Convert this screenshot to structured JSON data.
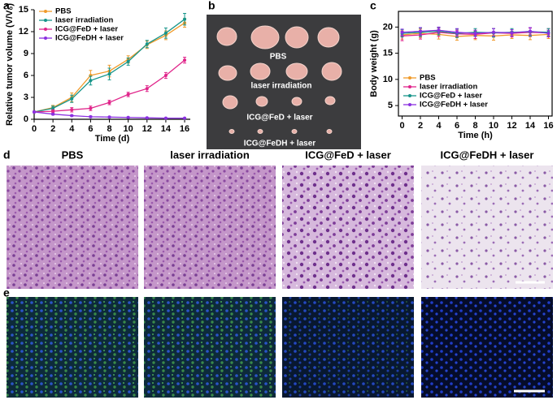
{
  "figure": {
    "panel_labels": [
      "a",
      "b",
      "c",
      "d",
      "e"
    ],
    "photo_labels": [
      "PBS",
      "laser irradiation",
      "ICG@FeD + laser",
      "ICG@FeDH + laser"
    ],
    "histology_titles": [
      "PBS",
      "laser irradiation",
      "ICG@FeD + laser",
      "ICG@FeDH + laser"
    ]
  },
  "chart_data": [
    {
      "type": "line",
      "xlabel": "Time (d)",
      "ylabel": "Relative tumor volume (V/V₀)",
      "x": [
        0,
        2,
        4,
        6,
        8,
        10,
        12,
        14,
        16
      ],
      "xlim": [
        0,
        16.6
      ],
      "xticks": [
        0,
        2,
        4,
        6,
        8,
        10,
        12,
        14,
        16
      ],
      "ylim": [
        0,
        15
      ],
      "yticks": [
        0,
        3,
        6,
        9,
        12,
        15
      ],
      "legend": "upper left",
      "box": false,
      "series": [
        {
          "name": "PBS",
          "color": "#f09a2a",
          "values": [
            1,
            1.6,
            3.0,
            6.0,
            6.6,
            8.2,
            10.2,
            11.5,
            13.2
          ],
          "errors": [
            0.1,
            0.3,
            0.6,
            0.7,
            0.8,
            0.5,
            0.5,
            0.6,
            0.6
          ]
        },
        {
          "name": "laser irradiation",
          "color": "#17958a",
          "values": [
            1,
            1.5,
            2.8,
            5.3,
            6.2,
            7.9,
            10.3,
            11.8,
            13.7
          ],
          "errors": [
            0.1,
            0.3,
            0.5,
            0.6,
            0.8,
            0.5,
            0.5,
            0.7,
            0.8
          ]
        },
        {
          "name": "ICG@FeD + laser",
          "color": "#e0248a",
          "values": [
            1,
            1.1,
            1.3,
            1.5,
            2.3,
            3.4,
            4.2,
            6.0,
            8.1
          ],
          "errors": [
            0.1,
            0.2,
            0.3,
            0.3,
            0.3,
            0.3,
            0.4,
            0.4,
            0.4
          ]
        },
        {
          "name": "ICG@FeDH + laser",
          "color": "#8a30e0",
          "values": [
            1,
            0.7,
            0.5,
            0.35,
            0.3,
            0.25,
            0.2,
            0.15,
            0.15
          ],
          "errors": [
            0.1,
            0.1,
            0.1,
            0.1,
            0.05,
            0.05,
            0.05,
            0.05,
            0.05
          ]
        }
      ]
    },
    {
      "type": "line",
      "xlabel": "Time (h)",
      "ylabel": "Body weight (g)",
      "x": [
        0,
        2,
        4,
        6,
        8,
        10,
        12,
        14,
        16
      ],
      "xlim": [
        -0.4,
        16.4
      ],
      "xticks": [
        0,
        2,
        4,
        6,
        8,
        10,
        12,
        14,
        16
      ],
      "ylim": [
        3,
        23
      ],
      "yticks": [
        5,
        10,
        15,
        20
      ],
      "legend": "lower left",
      "box": true,
      "series": [
        {
          "name": "PBS",
          "color": "#f09a2a",
          "values": [
            18.5,
            18.8,
            18.6,
            18.2,
            18.4,
            18.3,
            18.5,
            18.4,
            18.6
          ],
          "errors": [
            0.8,
            0.8,
            0.9,
            0.7,
            0.8,
            0.8,
            0.7,
            0.8,
            0.8
          ]
        },
        {
          "name": "laser irradiation",
          "color": "#e0248a",
          "values": [
            18.3,
            18.5,
            19.0,
            18.7,
            18.6,
            18.9,
            18.8,
            19.0,
            18.9
          ],
          "errors": [
            0.9,
            0.8,
            0.8,
            0.7,
            0.8,
            0.8,
            0.7,
            0.8,
            0.8
          ]
        },
        {
          "name": "ICG@FeD + laser",
          "color": "#17958a",
          "values": [
            18.8,
            19.0,
            19.2,
            18.8,
            19.0,
            18.9,
            19.0,
            19.1,
            19.0
          ],
          "errors": [
            0.7,
            0.8,
            0.7,
            0.8,
            0.7,
            0.8,
            0.7,
            0.8,
            0.7
          ]
        },
        {
          "name": "ICG@FeDH + laser",
          "color": "#8a30e0",
          "values": [
            19.0,
            19.2,
            19.4,
            19.0,
            18.8,
            19.0,
            18.9,
            19.2,
            18.8
          ],
          "errors": [
            0.6,
            0.7,
            0.6,
            0.7,
            0.6,
            0.7,
            0.6,
            0.7,
            0.6
          ]
        }
      ]
    }
  ]
}
